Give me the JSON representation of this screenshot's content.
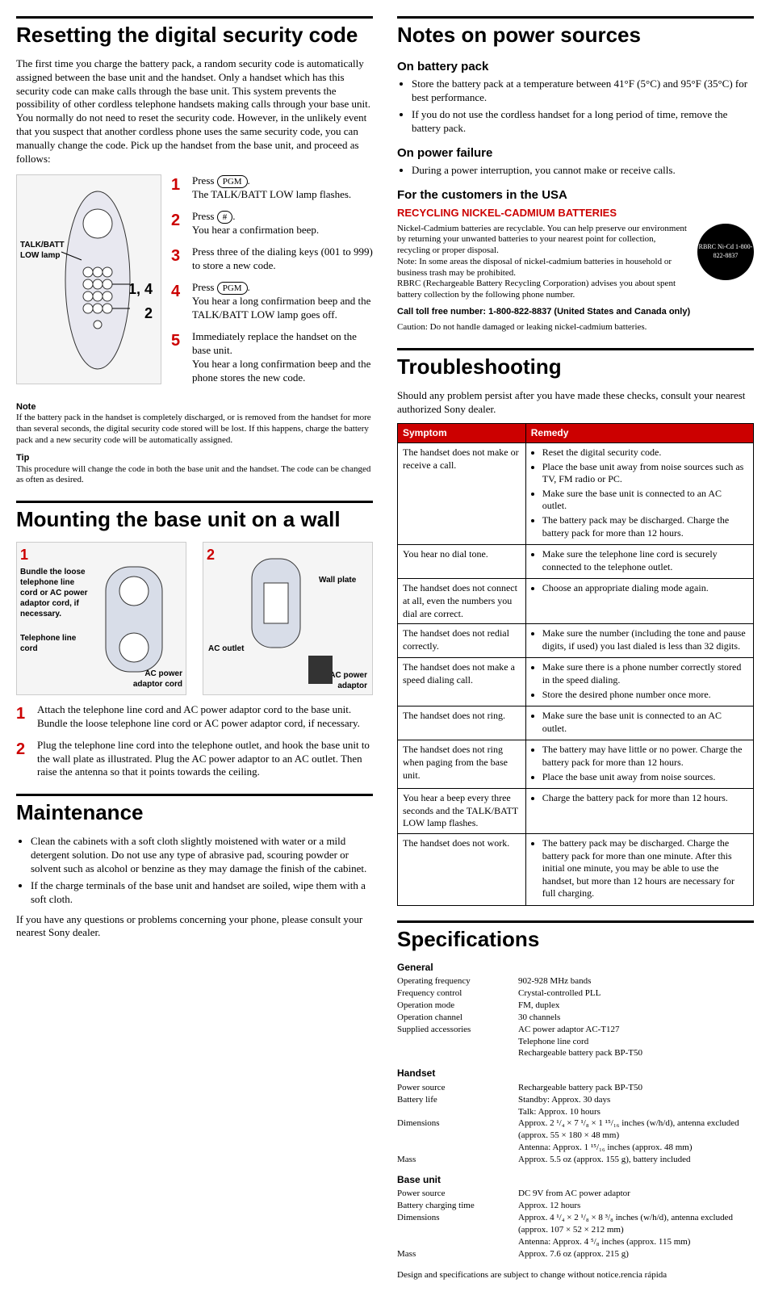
{
  "left": {
    "h1_reset": "Resetting the digital security code",
    "reset_intro": "The first time you charge the battery pack, a random security code is automatically assigned between the base unit and the handset. Only a handset which has this security code can make calls through the base unit. This system prevents the possibility of other cordless telephone handsets making calls through your base unit. You normally do not need to reset the security code. However, in the unlikely event that you suspect that another cordless phone uses the same security code, you can manually change the code. Pick up the handset from the base unit, and proceed as follows:",
    "diagram": {
      "talk_batt": "TALK/BATT\nLOW lamp",
      "ref_14": "1, 4",
      "ref_2": "2"
    },
    "steps": [
      {
        "n": "1",
        "a": "Press ",
        "key": "PGM",
        "b": ".",
        "c": "The TALK/BATT LOW lamp flashes."
      },
      {
        "n": "2",
        "a": "Press ",
        "key": "#",
        "b": ".",
        "c": "You hear a confirmation beep."
      },
      {
        "n": "3",
        "a": "Press three of the dialing keys (001 to 999) to store a new code.",
        "key": "",
        "b": "",
        "c": ""
      },
      {
        "n": "4",
        "a": "Press ",
        "key": "PGM",
        "b": ".",
        "c": "You hear a long confirmation beep and the TALK/BATT LOW lamp goes off."
      },
      {
        "n": "5",
        "a": "Immediately replace the handset on the base unit.",
        "key": "",
        "b": "",
        "c": "You hear a long confirmation beep and the phone stores the new code."
      }
    ],
    "note_head": "Note",
    "note_body": "If the battery pack in the handset is completely discharged, or is removed from the handset for more than several seconds, the digital security code stored will be lost. If this happens, charge the battery pack and a new security code will be automatically assigned.",
    "tip_head": "Tip",
    "tip_body": "This procedure will change the code in both the base unit and the handset. The code can be changed as often as desired.",
    "h1_mount": "Mounting the base unit on a wall",
    "fig1": {
      "n": "1",
      "bundle": "Bundle the loose telephone line cord or AC power adaptor cord, if necessary.",
      "tel": "Telephone line cord",
      "ac": "AC power adaptor cord"
    },
    "fig2": {
      "n": "2",
      "plate": "Wall plate",
      "outlet": "AC outlet",
      "adaptor": "AC power adaptor"
    },
    "mount_steps": [
      {
        "n": "1",
        "t": "Attach the telephone line cord and AC power adaptor cord to the base unit. Bundle the loose telephone line cord or AC power adaptor cord, if necessary."
      },
      {
        "n": "2",
        "t": "Plug the telephone line cord into the telephone outlet, and hook the base unit to the wall plate as illustrated. Plug the AC power adaptor to an AC outlet. Then raise the antenna so that it points towards the ceiling."
      }
    ],
    "h1_maint": "Maintenance",
    "maint_bullets": [
      "Clean the cabinets with a soft cloth slightly moistened with water or a mild detergent solution. Do not use any type of abrasive pad, scouring powder or solvent such as alcohol or benzine as they may damage the finish of the cabinet.",
      "If the charge terminals of the base unit and handset are soiled, wipe them with a soft cloth."
    ],
    "maint_para": "If you have any questions or problems concerning your phone, please consult your nearest Sony dealer."
  },
  "right": {
    "h1_notes": "Notes on power sources",
    "h2_batt": "On battery pack",
    "batt_bullets": [
      "Store the battery pack at a temperature between 41°F (5°C) and 95°F (35°C) for best performance.",
      "If you do not use the cordless handset for a long period of time, remove the battery pack."
    ],
    "h2_fail": "On power failure",
    "fail_bullets": [
      "During a power interruption, you cannot make or receive calls."
    ],
    "h2_usa": "For the customers in the USA",
    "h3_recycle": "RECYCLING NICKEL-CADMIUM BATTERIES",
    "recycle_p1": "Nickel-Cadmium batteries are recyclable. You can help preserve our environment by returning your unwanted batteries to your nearest point for collection, recycling or proper disposal.",
    "recycle_note": "Note: In some areas the disposal of nickel-cadmium batteries in household or business trash may be prohibited.",
    "recycle_p2": "RBRC (Rechargeable Battery Recycling Corporation) advises you about spent battery collection by the following phone number.",
    "recycle_call": "Call toll free number: 1-800-822-8837 (United States and Canada only)",
    "recycle_caution": "Caution: Do not handle damaged or leaking nickel-cadmium batteries.",
    "recycle_logo": "RBRC Ni-Cd 1-800-822-8837",
    "h1_trouble": "Troubleshooting",
    "trouble_intro": "Should any problem persist after you have made these checks, consult your nearest authorized Sony dealer.",
    "th_symptom": "Symptom",
    "th_remedy": "Remedy",
    "rows": [
      {
        "s": "The handset does not make or receive a call.",
        "r": [
          "Reset the digital security code.",
          "Place the base unit away from noise sources such as TV, FM radio or PC.",
          "Make sure the base unit is connected to an AC outlet.",
          "The battery pack may be discharged. Charge the battery pack for more than 12 hours."
        ]
      },
      {
        "s": "You hear no dial tone.",
        "r": [
          "Make sure the telephone line cord is securely connected to the telephone outlet."
        ]
      },
      {
        "s": "The handset does not connect at all, even the numbers you dial are correct.",
        "r": [
          "Choose an appropriate dialing mode again."
        ]
      },
      {
        "s": "The handset does not redial correctly.",
        "r": [
          "Make sure the number (including the tone and pause digits, if used) you last dialed is less than 32 digits."
        ]
      },
      {
        "s": "The handset does not make a speed dialing call.",
        "r": [
          "Make sure there is a phone number correctly stored in the speed dialing.",
          "Store the desired phone number once more."
        ]
      },
      {
        "s": "The handset does not ring.",
        "r": [
          "Make sure the base unit is connected to an AC outlet."
        ]
      },
      {
        "s": "The handset does not ring when paging from the base unit.",
        "r": [
          "The battery may have little or no power. Charge the battery pack for more than 12 hours.",
          "Place the base unit away from noise sources."
        ]
      },
      {
        "s": "You hear a beep every three seconds and the TALK/BATT LOW lamp flashes.",
        "r": [
          "Charge the battery pack for more than 12 hours."
        ]
      },
      {
        "s": "The handset does not work.",
        "r": [
          "The battery pack may be discharged. Charge the battery pack for more than one minute. After this initial one minute, you may be able to use the handset, but more than 12 hours are necessary for full charging."
        ]
      }
    ],
    "h1_spec": "Specifications",
    "spec": {
      "general_head": "General",
      "general": [
        {
          "l": "Operating frequency",
          "v": "902-928 MHz bands"
        },
        {
          "l": "Frequency control",
          "v": "Crystal-controlled PLL"
        },
        {
          "l": "Operation mode",
          "v": "FM, duplex"
        },
        {
          "l": "Operation channel",
          "v": "30 channels"
        },
        {
          "l": "Supplied accessories",
          "v": "AC power adaptor AC-T127"
        },
        {
          "l": "",
          "v": "Telephone line cord"
        },
        {
          "l": "",
          "v": "Rechargeable battery pack BP-T50"
        }
      ],
      "handset_head": "Handset",
      "handset": [
        {
          "l": "Power source",
          "v": "Rechargeable battery pack BP-T50"
        },
        {
          "l": "Battery life",
          "v": "Standby:        Approx. 30 days"
        },
        {
          "l": "",
          "v": "Talk:              Approx. 10 hours"
        },
        {
          "l": "Dimensions",
          "v": "Approx. 2 ¹/₄ × 7 ¹/₈ × 1 ¹⁵/₁₆ inches (w/h/d), antenna excluded"
        },
        {
          "l": "",
          "v": "(approx. 55 × 180 × 48 mm)"
        },
        {
          "l": "",
          "v": "Antenna: Approx. 1 ¹⁵/₁₆ inches (approx. 48 mm)"
        },
        {
          "l": "Mass",
          "v": "Approx. 5.5 oz (approx. 155 g), battery included"
        }
      ],
      "base_head": "Base unit",
      "base": [
        {
          "l": "Power source",
          "v": "DC 9V from AC power adaptor"
        },
        {
          "l": "Battery charging time",
          "v": "Approx. 12 hours"
        },
        {
          "l": "Dimensions",
          "v": "Approx. 4 ¹/₄ × 2 ¹/₈ × 8 ³/₈ inches (w/h/d), antenna excluded"
        },
        {
          "l": "",
          "v": "(approx. 107 × 52 × 212 mm)"
        },
        {
          "l": "",
          "v": "Antenna: Approx. 4 ⁵/₈ inches (approx. 115 mm)"
        },
        {
          "l": "Mass",
          "v": "Approx. 7.6 oz (approx. 215 g)"
        }
      ]
    },
    "footer": "Design and specifications are subject to change without notice.rencia rápida"
  }
}
